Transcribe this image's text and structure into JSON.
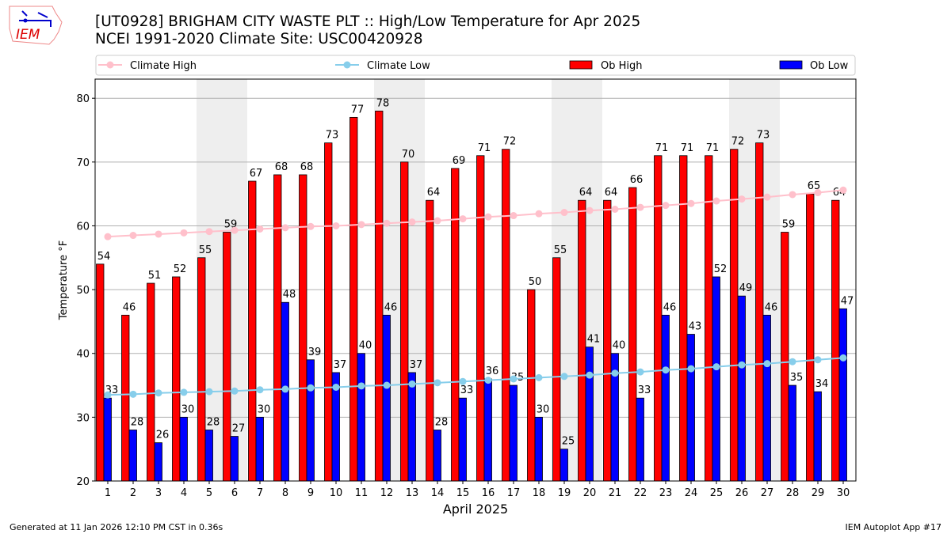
{
  "header": {
    "title_line1": "[UT0928] BRIGHAM CITY WASTE PLT :: High/Low Temperature for Apr 2025",
    "title_line2": "NCEI 1991-2020 Climate Site: USC00420928",
    "logo_text": "IEM"
  },
  "footer": {
    "left": "Generated at 11 Jan 2026 12:10 PM CST in 0.36s",
    "right": "IEM Autoplot App #17"
  },
  "colors": {
    "ob_high": "#ff0000",
    "ob_low": "#0000ff",
    "climate_high": "#ffc0cb",
    "climate_low": "#87ceeb",
    "weekend": "#eeeeee"
  },
  "chart_data": {
    "type": "bar",
    "title": "High/Low Temperature for Apr 2025",
    "xlabel": "April 2025",
    "ylabel": "Temperature °F",
    "ylim": [
      20,
      83
    ],
    "yticks": [
      20,
      30,
      40,
      50,
      60,
      70,
      80
    ],
    "grid": true,
    "legend_placement": "top",
    "categories": [
      1,
      2,
      3,
      4,
      5,
      6,
      7,
      8,
      9,
      10,
      11,
      12,
      13,
      14,
      15,
      16,
      17,
      18,
      19,
      20,
      21,
      22,
      23,
      24,
      25,
      26,
      27,
      28,
      29,
      30
    ],
    "weekend_days": [
      5,
      6,
      12,
      13,
      19,
      20,
      26,
      27
    ],
    "series": [
      {
        "name": "Ob High",
        "type": "bar",
        "values": [
          54,
          46,
          51,
          52,
          55,
          59,
          67,
          68,
          68,
          73,
          77,
          78,
          70,
          64,
          69,
          71,
          72,
          50,
          55,
          64,
          64,
          66,
          71,
          71,
          71,
          72,
          73,
          59,
          65,
          64
        ]
      },
      {
        "name": "Ob Low",
        "type": "bar",
        "values": [
          33,
          28,
          26,
          30,
          28,
          27,
          30,
          48,
          39,
          37,
          40,
          46,
          37,
          28,
          33,
          36,
          35,
          30,
          25,
          41,
          40,
          33,
          46,
          43,
          52,
          49,
          46,
          35,
          34,
          47
        ]
      },
      {
        "name": "Climate High",
        "type": "line",
        "values": [
          58.3,
          58.5,
          58.7,
          58.9,
          59.1,
          59.3,
          59.5,
          59.7,
          59.9,
          60.0,
          60.2,
          60.4,
          60.6,
          60.8,
          61.1,
          61.4,
          61.6,
          61.9,
          62.1,
          62.4,
          62.6,
          62.9,
          63.2,
          63.5,
          63.9,
          64.2,
          64.5,
          64.9,
          65.2,
          65.6
        ]
      },
      {
        "name": "Climate Low",
        "type": "line",
        "values": [
          33.5,
          33.6,
          33.8,
          33.9,
          34.0,
          34.1,
          34.3,
          34.4,
          34.6,
          34.7,
          34.9,
          35.0,
          35.2,
          35.4,
          35.6,
          35.8,
          36.0,
          36.2,
          36.4,
          36.6,
          36.9,
          37.1,
          37.4,
          37.6,
          37.9,
          38.2,
          38.4,
          38.7,
          39.0,
          39.3
        ]
      }
    ]
  }
}
